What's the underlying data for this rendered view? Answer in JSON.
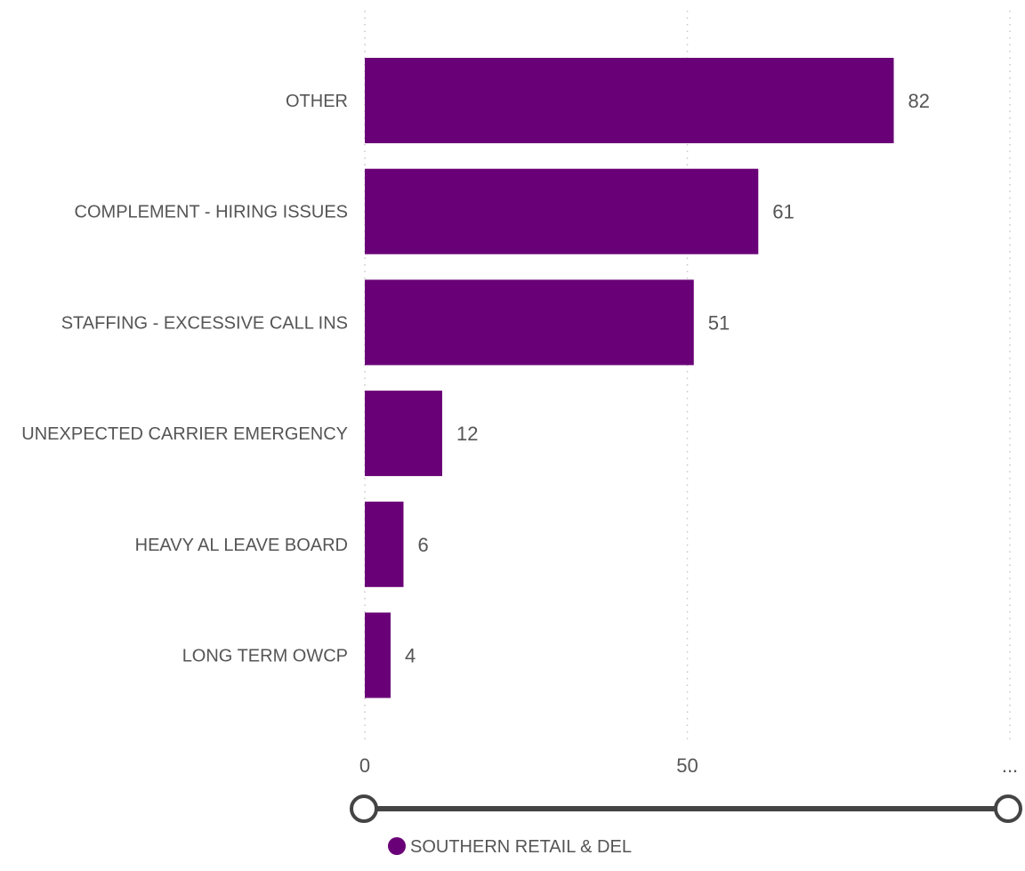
{
  "chart_data": {
    "type": "bar",
    "orientation": "horizontal",
    "categories": [
      "OTHER",
      "COMPLEMENT - HIRING ISSUES",
      "STAFFING - EXCESSIVE CALL INS",
      "UNEXPECTED CARRIER EMERGENCY",
      "HEAVY AL LEAVE BOARD",
      "LONG TERM OWCP"
    ],
    "series": [
      {
        "name": "SOUTHERN RETAIL & DEL",
        "values": [
          82,
          61,
          51,
          12,
          6,
          4
        ]
      }
    ],
    "xlim": [
      0,
      100
    ],
    "x_ticks": [
      "0",
      "50",
      "..."
    ],
    "grid": true,
    "legend_position": "bottom",
    "data_labels": true,
    "colors": {
      "bar": "#6a0077",
      "legend_marker": "#6a0077",
      "slider_track": "#444444",
      "gridline": "#c8c8c8",
      "text": "#555555"
    }
  },
  "range_slider": {
    "start_value": 0,
    "end_value": 100
  }
}
